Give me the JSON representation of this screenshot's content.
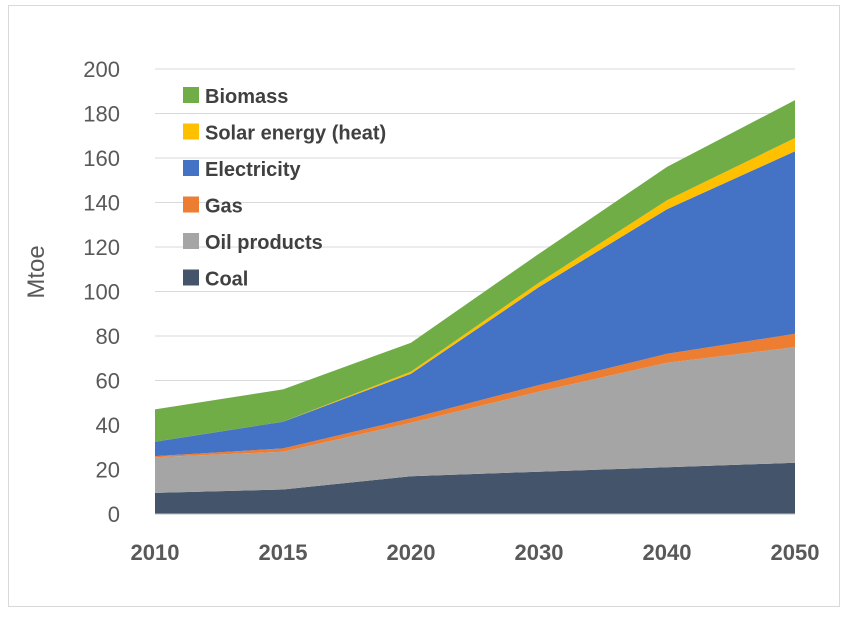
{
  "chart_data": {
    "type": "area",
    "stacked": true,
    "title": "",
    "xlabel": "",
    "ylabel": "Mtoe",
    "categories": [
      "2010",
      "2015",
      "2020",
      "2030",
      "2040",
      "2050"
    ],
    "ylim": [
      0,
      200
    ],
    "yticks": [
      0,
      20,
      40,
      60,
      80,
      100,
      120,
      140,
      160,
      180,
      200
    ],
    "grid": true,
    "legend_position": "top-left",
    "series": [
      {
        "name": "Coal",
        "color": "#44546A",
        "values": [
          9.5,
          11,
          17,
          19,
          21,
          23
        ]
      },
      {
        "name": "Oil products",
        "color": "#A5A5A5",
        "values": [
          16,
          17,
          24,
          36,
          47,
          52
        ]
      },
      {
        "name": "Gas",
        "color": "#ED7D31",
        "values": [
          0.5,
          1.5,
          2,
          3,
          4,
          6
        ]
      },
      {
        "name": "Electricity",
        "color": "#4472C4",
        "values": [
          6.5,
          12,
          20,
          44,
          65,
          82
        ]
      },
      {
        "name": "Solar energy (heat)",
        "color": "#FFC000",
        "values": [
          0,
          0,
          1,
          2,
          4,
          6
        ]
      },
      {
        "name": "Biomass",
        "color": "#70AD47",
        "values": [
          14.5,
          14.5,
          13,
          13,
          15,
          17
        ]
      }
    ],
    "legend_order": [
      "Biomass",
      "Solar energy (heat)",
      "Electricity",
      "Gas",
      "Oil products",
      "Coal"
    ]
  }
}
